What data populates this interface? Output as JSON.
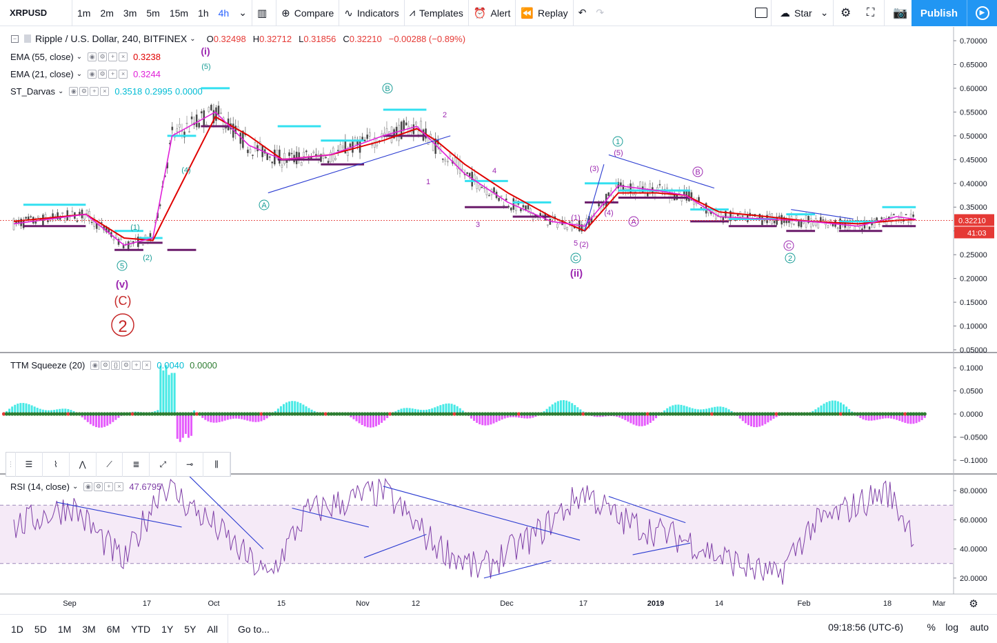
{
  "toolbar": {
    "symbol": "XRPUSD",
    "intervals": [
      "1m",
      "2m",
      "3m",
      "5m",
      "15m",
      "1h",
      "4h"
    ],
    "active_interval": "4h",
    "compare": "Compare",
    "indicators": "Indicators",
    "templates": "Templates",
    "alert": "Alert",
    "replay": "Replay",
    "star": "Star",
    "publish": "Publish"
  },
  "main_legend": {
    "title": "Ripple / U.S. Dollar, 240, BITFINEX",
    "o_label": "O",
    "o": "0.32498",
    "h_label": "H",
    "h": "0.32712",
    "l_label": "L",
    "l": "0.31856",
    "c_label": "C",
    "c": "0.32210",
    "change": "−0.00288 (−0.89%)"
  },
  "indicators": {
    "ema55": {
      "label": "EMA (55, close)",
      "value": "0.3238",
      "color": "#e00000"
    },
    "ema21": {
      "label": "EMA (21, close)",
      "value": "0.3244",
      "color": "#e01fd8"
    },
    "darvas": {
      "label": "ST_Darvas",
      "v1": "0.3518",
      "v2": "0.2995",
      "v3": "0.0000",
      "color": "#00bcd4"
    },
    "ttm": {
      "label": "TTM Squeeze (20)",
      "v1": "0.0040",
      "v2": "0.0000"
    },
    "rsi": {
      "label": "RSI (14, close)",
      "value": "47.6795",
      "color": "#7e3ea6"
    }
  },
  "price_axis": {
    "ticks": [
      "0.70000",
      "0.65000",
      "0.60000",
      "0.55000",
      "0.50000",
      "0.45000",
      "0.40000",
      "0.35000",
      "0.30000",
      "0.25000",
      "0.20000",
      "0.15000",
      "0.10000",
      "0.05000"
    ],
    "last_price": "0.32210",
    "countdown": "41:03"
  },
  "ttm_axis": {
    "ticks": [
      "0.1000",
      "0.0500",
      "0.0000",
      "−0.0500",
      "−0.1000"
    ]
  },
  "rsi_axis": {
    "ticks": [
      "80.0000",
      "60.0000",
      "40.0000",
      "20.0000"
    ]
  },
  "time_axis": {
    "ticks": [
      "Sep",
      "17",
      "Oct",
      "15",
      "Nov",
      "12",
      "Dec",
      "17",
      "2019",
      "14",
      "Feb",
      "18",
      "Mar"
    ]
  },
  "wave_labels": {
    "i_roman": "(i)",
    "five_paren": "(5)",
    "v_roman": "(v)",
    "c_paren": "(C)",
    "two_circle": "2",
    "one_paren": "(1)",
    "two_paren": "(2)",
    "four_paren": "(4)",
    "five_circle": "5",
    "a_circle": "A",
    "b_circle": "B",
    "n1": "1",
    "n2": "2",
    "n3": "3",
    "n4": "4",
    "five_plain": "5",
    "two_paren2": "(2)",
    "one_paren2": "(1)",
    "c_circle": "C",
    "ii_roman": "(ii)",
    "three_paren": "(3)",
    "four_paren2": "(4)",
    "one_circle": "1",
    "five_paren2": "(5)",
    "a_circle2": "A",
    "b_circle2": "B",
    "c_circle2": "C",
    "two_circle2": "2"
  },
  "bottom": {
    "ranges": [
      "1D",
      "5D",
      "1M",
      "3M",
      "6M",
      "YTD",
      "1Y",
      "5Y",
      "All"
    ],
    "goto": "Go to...",
    "clock": "09:18:56 (UTC-6)",
    "pct": "%",
    "log": "log",
    "auto": "auto"
  },
  "chart_data": {
    "type": "line",
    "symbol": "XRPUSD",
    "exchange": "BITFINEX",
    "timeframe_minutes": 240,
    "price_range": [
      0.05,
      0.7
    ],
    "x_range": [
      "2018-08-20",
      "2019-03-01"
    ],
    "series": [
      {
        "name": "EMA (55, close)",
        "x": [
          "2018-08-20",
          "2018-09-04",
          "2018-09-12",
          "2018-09-18",
          "2018-09-22",
          "2018-10-01",
          "2018-10-08",
          "2018-10-15",
          "2018-10-25",
          "2018-11-05",
          "2018-11-12",
          "2018-11-16",
          "2018-11-22",
          "2018-12-01",
          "2018-12-10",
          "2018-12-17",
          "2018-12-24",
          "2019-01-01",
          "2019-01-07",
          "2019-01-14",
          "2019-01-24",
          "2019-02-02",
          "2019-02-12",
          "2019-02-20",
          "2019-02-24"
        ],
        "values": [
          0.32,
          0.335,
          0.285,
          0.28,
          0.36,
          0.54,
          0.5,
          0.45,
          0.46,
          0.49,
          0.515,
          0.49,
          0.44,
          0.38,
          0.33,
          0.3,
          0.38,
          0.38,
          0.375,
          0.34,
          0.33,
          0.32,
          0.315,
          0.322,
          0.3238
        ]
      },
      {
        "name": "EMA (21, close)",
        "x": [
          "2018-08-20",
          "2018-09-04",
          "2018-09-12",
          "2018-09-18",
          "2018-09-22",
          "2018-10-01",
          "2018-10-08",
          "2018-10-15",
          "2018-10-25",
          "2018-11-05",
          "2018-11-12",
          "2018-11-16",
          "2018-11-22",
          "2018-12-01",
          "2018-12-10",
          "2018-12-17",
          "2018-12-24",
          "2019-01-01",
          "2019-01-07",
          "2019-01-14",
          "2019-01-24",
          "2019-02-02",
          "2019-02-12",
          "2019-02-20",
          "2019-02-24"
        ],
        "values": [
          0.315,
          0.335,
          0.27,
          0.285,
          0.5,
          0.55,
          0.48,
          0.45,
          0.46,
          0.5,
          0.52,
          0.48,
          0.42,
          0.36,
          0.32,
          0.31,
          0.395,
          0.385,
          0.375,
          0.33,
          0.325,
          0.32,
          0.31,
          0.33,
          0.3244
        ]
      },
      {
        "name": "RSI (14, close)",
        "x": [
          "2018-08-20",
          "2018-09-01",
          "2018-09-12",
          "2018-09-20",
          "2018-10-01",
          "2018-10-12",
          "2018-10-20",
          "2018-11-05",
          "2018-11-15",
          "2018-11-25",
          "2018-12-07",
          "2018-12-17",
          "2018-12-24",
          "2019-01-08",
          "2019-01-14",
          "2019-01-26",
          "2019-02-02",
          "2019-02-18",
          "2019-02-24"
        ],
        "values": [
          55,
          70,
          30,
          85,
          55,
          20,
          65,
          80,
          45,
          25,
          50,
          80,
          60,
          45,
          35,
          20,
          55,
          80,
          47.68
        ]
      }
    ],
    "rsi_range": [
      10,
      90
    ],
    "rsi_band": [
      30,
      70
    ],
    "ttm_range": [
      -0.13,
      0.13
    ]
  }
}
